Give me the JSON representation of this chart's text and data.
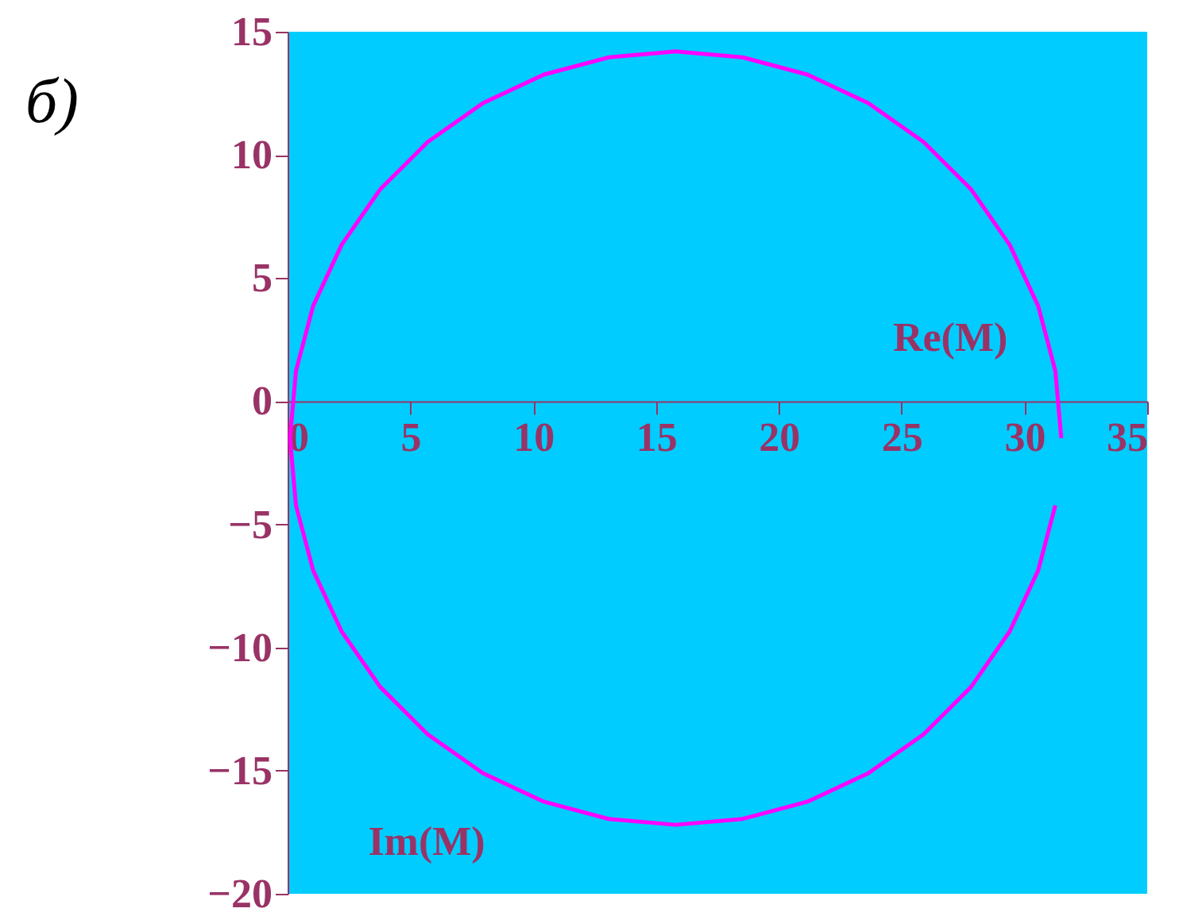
{
  "chart_data": {
    "type": "line",
    "xlabel": "Re(M)",
    "ylabel": "Im(M)",
    "annotations": [
      "б)"
    ],
    "x": [
      31.5,
      31.26,
      30.56,
      29.4,
      27.83,
      25.89,
      23.65,
      21.17,
      18.53,
      15.8,
      13.07,
      10.43,
      7.95,
      5.71,
      3.77,
      2.2,
      1.04,
      0.34,
      0.1,
      0.34,
      1.04,
      2.2,
      3.77,
      5.71,
      7.95,
      10.43,
      13.07,
      15.8,
      18.53,
      21.17,
      23.65,
      25.89,
      27.83,
      29.4,
      30.56,
      31.26
    ],
    "series": [
      {
        "color": "#ff00ff",
        "values": [
          -1.5,
          1.23,
          3.87,
          6.35,
          8.6,
          10.53,
          12.1,
          13.26,
          13.96,
          14.2,
          13.96,
          13.26,
          12.1,
          10.53,
          8.6,
          6.35,
          3.87,
          1.23,
          -1.5,
          -4.23,
          -6.87,
          -9.35,
          -11.6,
          -13.53,
          -15.1,
          -16.26,
          -16.96,
          -17.2,
          -16.96,
          -16.26,
          -15.1,
          -13.53,
          -11.6,
          -9.35,
          -6.87,
          -4.23
        ]
      }
    ],
    "xlim": [
      0,
      35
    ],
    "xticks": [
      0,
      5,
      10,
      15,
      20,
      25,
      30,
      35
    ],
    "ylim": [
      -20,
      15
    ],
    "yticks": [
      -20,
      -15,
      -10,
      -5,
      0,
      5,
      10,
      15
    ],
    "grid": false,
    "marker": "none",
    "line_style": "solid"
  }
}
